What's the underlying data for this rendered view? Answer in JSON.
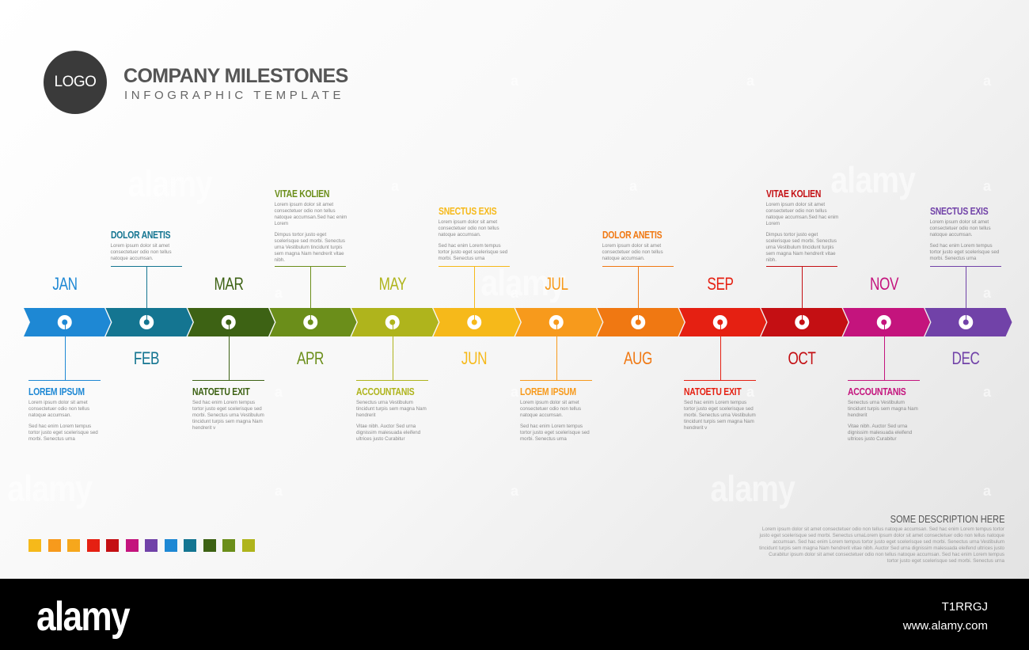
{
  "header": {
    "logo": "LOGO",
    "title": "COMPANY MILESTONES",
    "subtitle": "INFOGRAPHIC TEMPLATE"
  },
  "timeline": [
    {
      "month": "JAN",
      "color": "#1e88d4",
      "event": {
        "title": "LOREM IPSUM",
        "text1": "Lorem ipsum dolor sit amet consectetuer odio non tellus natoque accumsan.",
        "text2": "Sed hac enim Lorem tempus tortor justo eget scelerisque sed morbi. Senectus urna"
      }
    },
    {
      "month": "FEB",
      "color": "#147591",
      "event": {
        "title": "DOLOR ANETIS",
        "text1": "Lorem ipsum dolor sit amet consectetuer odio non tellus natoque accumsan.",
        "text2": ""
      }
    },
    {
      "month": "MAR",
      "color": "#3d6214",
      "event": {
        "title": "NATOETU EXIT",
        "text1": "Sed hac enim Lorem tempus tortor justo eget scelerisque sed morbi. Senectus urna Vestibulum tincidunt turpis sem magna Nam hendrerit v",
        "text2": ""
      }
    },
    {
      "month": "APR",
      "color": "#6b8e1a",
      "event": {
        "title": "VITAE KOLIEN",
        "text1": "Lorem ipsum dolor sit amet consectetuer odio non tellus natoque accumsan.Sed hac enim Lorem",
        "text2": "Dimpus tortor justo eget scelerisque sed morbi. Senectus urna Vestibulum tincidunt turpis sem magna Nam hendrerit vitae nibh."
      }
    },
    {
      "month": "MAY",
      "color": "#afb41c",
      "event": {
        "title": "ACCOUNTANIS",
        "text1": "Senectus urna Vestibulum tincidunt turpis sem magna Nam hendrerit",
        "text2": "Vitae nibh. Auctor Sed urna dignissim malesuada eleifend ultrices justo Curabitur"
      }
    },
    {
      "month": "JUN",
      "color": "#f6b91a",
      "event": {
        "title": "SNECTUS EXIS",
        "text1": "Lorem ipsum dolor sit amet consectetuer odio non tellus natoque accumsan.",
        "text2": "Sed hac enim Lorem tempus tortor justo eget scelerisque sed morbi. Senectus urna"
      }
    },
    {
      "month": "JUL",
      "color": "#f79a1c",
      "event": {
        "title": "LOREM IPSUM",
        "text1": "Lorem ipsum dolor sit amet consectetuer odio non tellus natoque accumsan.",
        "text2": "Sed hac enim Lorem tempus tortor justo eget scelerisque sed morbi. Senectus urna"
      }
    },
    {
      "month": "AUG",
      "color": "#f07812",
      "event": {
        "title": "DOLOR ANETIS",
        "text1": "Lorem ipsum dolor sit amet consectetuer odio non tellus natoque accumsan.",
        "text2": ""
      }
    },
    {
      "month": "SEP",
      "color": "#e52012",
      "event": {
        "title": "NATOETU EXIT",
        "text1": "Sed hac enim Lorem tempus tortor justo eget scelerisque sed morbi. Senectus urna Vestibulum tincidunt turpis sem magna Nam hendrerit v",
        "text2": ""
      }
    },
    {
      "month": "OCT",
      "color": "#c40f13",
      "event": {
        "title": "VITAE KOLIEN",
        "text1": "Lorem ipsum dolor sit amet consectetuer odio non tellus natoque accumsan.Sed hac enim Lorem",
        "text2": "Dimpus tortor justo eget scelerisque sed morbi. Senectus urna Vestibulum tincidunt turpis sem magna Nam hendrerit vitae nibh."
      }
    },
    {
      "month": "NOV",
      "color": "#c4147d",
      "event": {
        "title": "ACCOUNTANIS",
        "text1": "Senectus urna Vestibulum tincidunt turpis sem magna Nam hendrerit",
        "text2": "Vitae nibh. Auctor Sed urna dignissim malesuada eleifend ultrices justo Curabitur"
      }
    },
    {
      "month": "DEC",
      "color": "#7142a8",
      "event": {
        "title": "SNECTUS EXIS",
        "text1": "Lorem ipsum dolor sit amet consectetuer odio non tellus natoque accumsan.",
        "text2": "Sed hac enim Lorem tempus tortor justo eget scelerisque sed morbi. Senectus urna"
      }
    }
  ],
  "swatch_colors": [
    "#f6b91a",
    "#f79a1c",
    "#f6a71c",
    "#e52012",
    "#c40f13",
    "#c4147d",
    "#7142a8",
    "#1e88d4",
    "#147591",
    "#3d6214",
    "#6b8e1a",
    "#afb41c"
  ],
  "description": {
    "title": "SOME DESCRIPTION HERE",
    "text": "Lorem ipsum dolor sit amet consectetuer odio non tellus natoque accumsan. Sed hac enim Lorem tempus tortor justo eget scelerisque sed morbi. Senectus urnaLorem ipsum dolor sit amet consectetuer odio non tellus natoque accumsan. Sed hac enim Lorem tempus tortor justo eget scelerisque sed morbi. Senectus urna Vestibulum tincidunt turpis sem magna Nam hendrerit vitae nibh. Auctor Sed urna dignissim malesuada eleifend ultrices justo Curabitur ipsum dolor sit amet consectetuer odio non tellus natoque accumsan. Sed hac enim Lorem tempus tortor justo eget scelerisque sed morbi. Senectus urna"
  },
  "watermark": {
    "brand": "alamy",
    "mark": "a"
  },
  "footer": {
    "brand": "alamy",
    "image_id": "T1RRGJ",
    "url": "www.alamy.com"
  }
}
